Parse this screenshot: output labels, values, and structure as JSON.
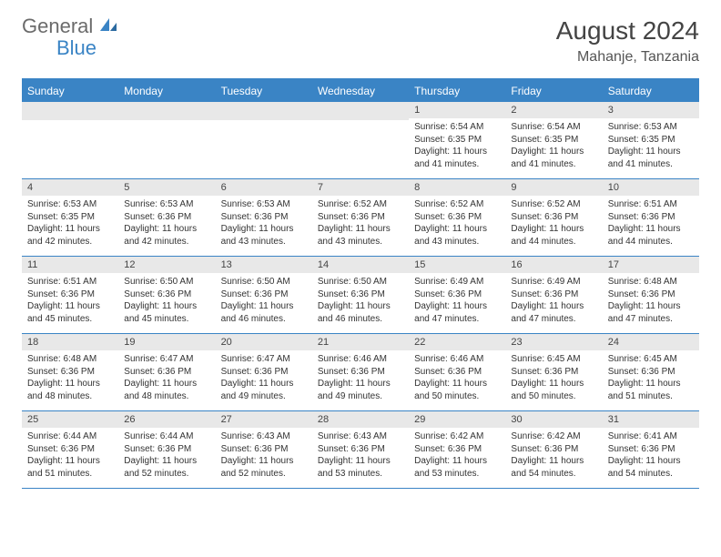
{
  "brand": {
    "part1": "General",
    "part2": "Blue"
  },
  "title": "August 2024",
  "location": "Mahanje, Tanzania",
  "colors": {
    "accent": "#3a84c5",
    "header_text": "#ffffff",
    "daynum_bg": "#e8e8e8",
    "body_text": "#333333",
    "logo_gray": "#6b6b6b"
  },
  "days_of_week": [
    "Sunday",
    "Monday",
    "Tuesday",
    "Wednesday",
    "Thursday",
    "Friday",
    "Saturday"
  ],
  "weeks": [
    [
      {
        "blank": true
      },
      {
        "blank": true
      },
      {
        "blank": true
      },
      {
        "blank": true
      },
      {
        "n": "1",
        "sunrise": "Sunrise: 6:54 AM",
        "sunset": "Sunset: 6:35 PM",
        "daylight": "Daylight: 11 hours and 41 minutes."
      },
      {
        "n": "2",
        "sunrise": "Sunrise: 6:54 AM",
        "sunset": "Sunset: 6:35 PM",
        "daylight": "Daylight: 11 hours and 41 minutes."
      },
      {
        "n": "3",
        "sunrise": "Sunrise: 6:53 AM",
        "sunset": "Sunset: 6:35 PM",
        "daylight": "Daylight: 11 hours and 41 minutes."
      }
    ],
    [
      {
        "n": "4",
        "sunrise": "Sunrise: 6:53 AM",
        "sunset": "Sunset: 6:35 PM",
        "daylight": "Daylight: 11 hours and 42 minutes."
      },
      {
        "n": "5",
        "sunrise": "Sunrise: 6:53 AM",
        "sunset": "Sunset: 6:36 PM",
        "daylight": "Daylight: 11 hours and 42 minutes."
      },
      {
        "n": "6",
        "sunrise": "Sunrise: 6:53 AM",
        "sunset": "Sunset: 6:36 PM",
        "daylight": "Daylight: 11 hours and 43 minutes."
      },
      {
        "n": "7",
        "sunrise": "Sunrise: 6:52 AM",
        "sunset": "Sunset: 6:36 PM",
        "daylight": "Daylight: 11 hours and 43 minutes."
      },
      {
        "n": "8",
        "sunrise": "Sunrise: 6:52 AM",
        "sunset": "Sunset: 6:36 PM",
        "daylight": "Daylight: 11 hours and 43 minutes."
      },
      {
        "n": "9",
        "sunrise": "Sunrise: 6:52 AM",
        "sunset": "Sunset: 6:36 PM",
        "daylight": "Daylight: 11 hours and 44 minutes."
      },
      {
        "n": "10",
        "sunrise": "Sunrise: 6:51 AM",
        "sunset": "Sunset: 6:36 PM",
        "daylight": "Daylight: 11 hours and 44 minutes."
      }
    ],
    [
      {
        "n": "11",
        "sunrise": "Sunrise: 6:51 AM",
        "sunset": "Sunset: 6:36 PM",
        "daylight": "Daylight: 11 hours and 45 minutes."
      },
      {
        "n": "12",
        "sunrise": "Sunrise: 6:50 AM",
        "sunset": "Sunset: 6:36 PM",
        "daylight": "Daylight: 11 hours and 45 minutes."
      },
      {
        "n": "13",
        "sunrise": "Sunrise: 6:50 AM",
        "sunset": "Sunset: 6:36 PM",
        "daylight": "Daylight: 11 hours and 46 minutes."
      },
      {
        "n": "14",
        "sunrise": "Sunrise: 6:50 AM",
        "sunset": "Sunset: 6:36 PM",
        "daylight": "Daylight: 11 hours and 46 minutes."
      },
      {
        "n": "15",
        "sunrise": "Sunrise: 6:49 AM",
        "sunset": "Sunset: 6:36 PM",
        "daylight": "Daylight: 11 hours and 47 minutes."
      },
      {
        "n": "16",
        "sunrise": "Sunrise: 6:49 AM",
        "sunset": "Sunset: 6:36 PM",
        "daylight": "Daylight: 11 hours and 47 minutes."
      },
      {
        "n": "17",
        "sunrise": "Sunrise: 6:48 AM",
        "sunset": "Sunset: 6:36 PM",
        "daylight": "Daylight: 11 hours and 47 minutes."
      }
    ],
    [
      {
        "n": "18",
        "sunrise": "Sunrise: 6:48 AM",
        "sunset": "Sunset: 6:36 PM",
        "daylight": "Daylight: 11 hours and 48 minutes."
      },
      {
        "n": "19",
        "sunrise": "Sunrise: 6:47 AM",
        "sunset": "Sunset: 6:36 PM",
        "daylight": "Daylight: 11 hours and 48 minutes."
      },
      {
        "n": "20",
        "sunrise": "Sunrise: 6:47 AM",
        "sunset": "Sunset: 6:36 PM",
        "daylight": "Daylight: 11 hours and 49 minutes."
      },
      {
        "n": "21",
        "sunrise": "Sunrise: 6:46 AM",
        "sunset": "Sunset: 6:36 PM",
        "daylight": "Daylight: 11 hours and 49 minutes."
      },
      {
        "n": "22",
        "sunrise": "Sunrise: 6:46 AM",
        "sunset": "Sunset: 6:36 PM",
        "daylight": "Daylight: 11 hours and 50 minutes."
      },
      {
        "n": "23",
        "sunrise": "Sunrise: 6:45 AM",
        "sunset": "Sunset: 6:36 PM",
        "daylight": "Daylight: 11 hours and 50 minutes."
      },
      {
        "n": "24",
        "sunrise": "Sunrise: 6:45 AM",
        "sunset": "Sunset: 6:36 PM",
        "daylight": "Daylight: 11 hours and 51 minutes."
      }
    ],
    [
      {
        "n": "25",
        "sunrise": "Sunrise: 6:44 AM",
        "sunset": "Sunset: 6:36 PM",
        "daylight": "Daylight: 11 hours and 51 minutes."
      },
      {
        "n": "26",
        "sunrise": "Sunrise: 6:44 AM",
        "sunset": "Sunset: 6:36 PM",
        "daylight": "Daylight: 11 hours and 52 minutes."
      },
      {
        "n": "27",
        "sunrise": "Sunrise: 6:43 AM",
        "sunset": "Sunset: 6:36 PM",
        "daylight": "Daylight: 11 hours and 52 minutes."
      },
      {
        "n": "28",
        "sunrise": "Sunrise: 6:43 AM",
        "sunset": "Sunset: 6:36 PM",
        "daylight": "Daylight: 11 hours and 53 minutes."
      },
      {
        "n": "29",
        "sunrise": "Sunrise: 6:42 AM",
        "sunset": "Sunset: 6:36 PM",
        "daylight": "Daylight: 11 hours and 53 minutes."
      },
      {
        "n": "30",
        "sunrise": "Sunrise: 6:42 AM",
        "sunset": "Sunset: 6:36 PM",
        "daylight": "Daylight: 11 hours and 54 minutes."
      },
      {
        "n": "31",
        "sunrise": "Sunrise: 6:41 AM",
        "sunset": "Sunset: 6:36 PM",
        "daylight": "Daylight: 11 hours and 54 minutes."
      }
    ]
  ]
}
